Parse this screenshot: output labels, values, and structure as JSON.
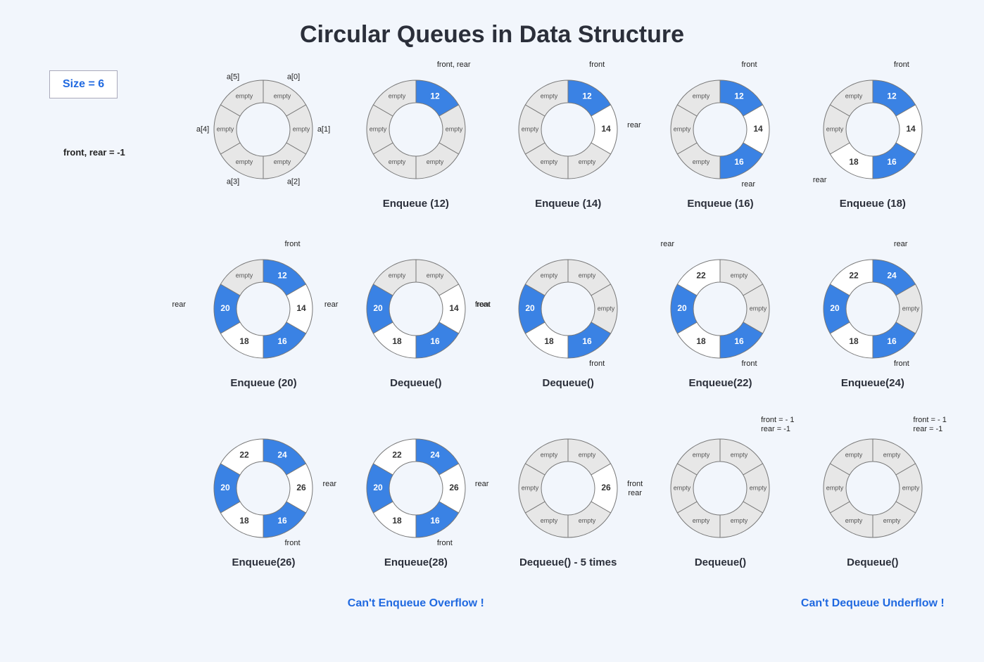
{
  "title": "Circular Queues in Data Structure",
  "size_label": "Size = 6",
  "colors": {
    "empty_fill": "#e7e7e7",
    "filled_fill": "#3a82e4",
    "white_fill": "#ffffff",
    "stroke": "#777",
    "bg": "#f2f6fc",
    "text_dark": "#2b2f3a",
    "accent": "#2069e0"
  },
  "ring": {
    "outer_r": 70,
    "inner_r": 38,
    "mid_r": 54,
    "segments": 6,
    "start_angle_deg": -90
  },
  "warnings": {
    "overflow": "Can't Enqueue Overflow !",
    "underflow": "Can't Dequeue Underflow !"
  },
  "states": [
    {
      "id": "init",
      "col": 1,
      "row": 0,
      "caption": "",
      "segments": [
        {
          "state": "empty",
          "label": "empty"
        },
        {
          "state": "empty",
          "label": "empty"
        },
        {
          "state": "empty",
          "label": "empty"
        },
        {
          "state": "empty",
          "label": "empty"
        },
        {
          "state": "empty",
          "label": "empty"
        },
        {
          "state": "empty",
          "label": "empty"
        }
      ],
      "outer_labels": [
        "a[0]",
        "a[1]",
        "a[2]",
        "a[3]",
        "a[4]",
        "a[5]"
      ],
      "pointers": []
    },
    {
      "id": "enq12",
      "col": 2,
      "row": 0,
      "caption": "Enqueue (12)",
      "segments": [
        {
          "state": "filled",
          "label": "12"
        },
        {
          "state": "empty",
          "label": "empty"
        },
        {
          "state": "empty",
          "label": "empty"
        },
        {
          "state": "empty",
          "label": "empty"
        },
        {
          "state": "empty",
          "label": "empty"
        },
        {
          "state": "empty",
          "label": "empty"
        }
      ],
      "pointers": [
        {
          "seg": 0,
          "text": "front, rear",
          "side": "top"
        }
      ]
    },
    {
      "id": "enq14",
      "col": 3,
      "row": 0,
      "caption": "Enqueue (14)",
      "segments": [
        {
          "state": "filled",
          "label": "12"
        },
        {
          "state": "white",
          "label": "14"
        },
        {
          "state": "empty",
          "label": "empty"
        },
        {
          "state": "empty",
          "label": "empty"
        },
        {
          "state": "empty",
          "label": "empty"
        },
        {
          "state": "empty",
          "label": "empty"
        }
      ],
      "pointers": [
        {
          "seg": 0,
          "text": "front",
          "side": "top"
        },
        {
          "seg": 1,
          "text": "rear",
          "side": "right"
        }
      ]
    },
    {
      "id": "enq16",
      "col": 4,
      "row": 0,
      "caption": "Enqueue (16)",
      "segments": [
        {
          "state": "filled",
          "label": "12"
        },
        {
          "state": "white",
          "label": "14"
        },
        {
          "state": "filled",
          "label": "16"
        },
        {
          "state": "empty",
          "label": "empty"
        },
        {
          "state": "empty",
          "label": "empty"
        },
        {
          "state": "empty",
          "label": "empty"
        }
      ],
      "pointers": [
        {
          "seg": 0,
          "text": "front",
          "side": "top"
        },
        {
          "seg": 2,
          "text": "rear",
          "side": "bottom-right"
        }
      ]
    },
    {
      "id": "enq18",
      "col": 5,
      "row": 0,
      "caption": "Enqueue (18)",
      "segments": [
        {
          "state": "filled",
          "label": "12"
        },
        {
          "state": "white",
          "label": "14"
        },
        {
          "state": "filled",
          "label": "16"
        },
        {
          "state": "white",
          "label": "18"
        },
        {
          "state": "empty",
          "label": "empty"
        },
        {
          "state": "empty",
          "label": "empty"
        }
      ],
      "pointers": [
        {
          "seg": 0,
          "text": "front",
          "side": "top"
        },
        {
          "seg": 3,
          "text": "rear",
          "side": "bottom-left"
        }
      ]
    },
    {
      "id": "enq20",
      "col": 1,
      "row": 1,
      "caption": "Enqueue (20)",
      "segments": [
        {
          "state": "filled",
          "label": "12"
        },
        {
          "state": "white",
          "label": "14"
        },
        {
          "state": "filled",
          "label": "16"
        },
        {
          "state": "white",
          "label": "18"
        },
        {
          "state": "filled",
          "label": "20"
        },
        {
          "state": "empty",
          "label": "empty"
        }
      ],
      "pointers": [
        {
          "seg": 0,
          "text": "front",
          "side": "top"
        },
        {
          "seg": 4,
          "text": "rear",
          "side": "left"
        }
      ]
    },
    {
      "id": "deq1",
      "col": 2,
      "row": 1,
      "caption": "Dequeue()",
      "segments": [
        {
          "state": "empty",
          "label": "empty"
        },
        {
          "state": "white",
          "label": "14"
        },
        {
          "state": "filled",
          "label": "16"
        },
        {
          "state": "white",
          "label": "18"
        },
        {
          "state": "filled",
          "label": "20"
        },
        {
          "state": "empty",
          "label": "empty"
        }
      ],
      "pointers": [
        {
          "seg": 1,
          "text": "front",
          "side": "right-low"
        },
        {
          "seg": 4,
          "text": "rear",
          "side": "left"
        }
      ]
    },
    {
      "id": "deq2",
      "col": 3,
      "row": 1,
      "caption": "Dequeue()",
      "segments": [
        {
          "state": "empty",
          "label": "empty"
        },
        {
          "state": "empty",
          "label": "empty"
        },
        {
          "state": "filled",
          "label": "16"
        },
        {
          "state": "white",
          "label": "18"
        },
        {
          "state": "filled",
          "label": "20"
        },
        {
          "state": "empty",
          "label": "empty"
        }
      ],
      "pointers": [
        {
          "seg": 2,
          "text": "front",
          "side": "bottom-right"
        },
        {
          "seg": 4,
          "text": "rear",
          "side": "left-high"
        }
      ]
    },
    {
      "id": "enq22",
      "col": 4,
      "row": 1,
      "caption": "Enqueue(22)",
      "segments": [
        {
          "state": "empty",
          "label": "empty"
        },
        {
          "state": "empty",
          "label": "empty"
        },
        {
          "state": "filled",
          "label": "16"
        },
        {
          "state": "white",
          "label": "18"
        },
        {
          "state": "filled",
          "label": "20"
        },
        {
          "state": "white",
          "label": "22"
        }
      ],
      "pointers": [
        {
          "seg": 2,
          "text": "front",
          "side": "bottom-right"
        },
        {
          "seg": 5,
          "text": "rear",
          "side": "top-left"
        }
      ]
    },
    {
      "id": "enq24",
      "col": 5,
      "row": 1,
      "caption": "Enqueue(24)",
      "segments": [
        {
          "state": "filled",
          "label": "24"
        },
        {
          "state": "empty",
          "label": "empty"
        },
        {
          "state": "filled",
          "label": "16"
        },
        {
          "state": "white",
          "label": "18"
        },
        {
          "state": "filled",
          "label": "20"
        },
        {
          "state": "white",
          "label": "22"
        }
      ],
      "pointers": [
        {
          "seg": 2,
          "text": "front",
          "side": "bottom-right"
        },
        {
          "seg": 0,
          "text": "rear",
          "side": "top"
        }
      ]
    },
    {
      "id": "enq26",
      "col": 1,
      "row": 2,
      "caption": "Enqueue(26)",
      "segments": [
        {
          "state": "filled",
          "label": "24"
        },
        {
          "state": "white",
          "label": "26"
        },
        {
          "state": "filled",
          "label": "16"
        },
        {
          "state": "white",
          "label": "18"
        },
        {
          "state": "filled",
          "label": "20"
        },
        {
          "state": "white",
          "label": "22"
        }
      ],
      "pointers": [
        {
          "seg": 2,
          "text": "front",
          "side": "bottom-right"
        },
        {
          "seg": 1,
          "text": "rear",
          "side": "right"
        }
      ]
    },
    {
      "id": "enq28",
      "col": 2,
      "row": 2,
      "caption": "Enqueue(28)",
      "segments": [
        {
          "state": "filled",
          "label": "24"
        },
        {
          "state": "white",
          "label": "26"
        },
        {
          "state": "filled",
          "label": "16"
        },
        {
          "state": "white",
          "label": "18"
        },
        {
          "state": "filled",
          "label": "20"
        },
        {
          "state": "white",
          "label": "22"
        }
      ],
      "pointers": [
        {
          "seg": 2,
          "text": "front",
          "side": "bottom-right"
        },
        {
          "seg": 1,
          "text": "rear",
          "side": "right"
        }
      ]
    },
    {
      "id": "deq5",
      "col": 3,
      "row": 2,
      "caption": "Dequeue() - 5 times",
      "segments": [
        {
          "state": "empty",
          "label": "empty"
        },
        {
          "state": "white",
          "label": "26"
        },
        {
          "state": "empty",
          "label": "empty"
        },
        {
          "state": "empty",
          "label": "empty"
        },
        {
          "state": "empty",
          "label": "empty"
        },
        {
          "state": "empty",
          "label": "empty"
        }
      ],
      "pointers": [
        {
          "seg": 1,
          "text": "front\nrear",
          "side": "right"
        }
      ]
    },
    {
      "id": "deqA",
      "col": 4,
      "row": 2,
      "caption": "Dequeue()",
      "segments": [
        {
          "state": "empty",
          "label": "empty"
        },
        {
          "state": "empty",
          "label": "empty"
        },
        {
          "state": "empty",
          "label": "empty"
        },
        {
          "state": "empty",
          "label": "empty"
        },
        {
          "state": "empty",
          "label": "empty"
        },
        {
          "state": "empty",
          "label": "empty"
        }
      ],
      "pointers": [],
      "corner_text": "front = - 1\nrear = -1"
    },
    {
      "id": "deqB",
      "col": 5,
      "row": 2,
      "caption": "Dequeue()",
      "segments": [
        {
          "state": "empty",
          "label": "empty"
        },
        {
          "state": "empty",
          "label": "empty"
        },
        {
          "state": "empty",
          "label": "empty"
        },
        {
          "state": "empty",
          "label": "empty"
        },
        {
          "state": "empty",
          "label": "empty"
        },
        {
          "state": "empty",
          "label": "empty"
        }
      ],
      "pointers": [],
      "corner_text": "front = - 1\nrear = -1"
    }
  ],
  "init_label": "front, rear = -1"
}
